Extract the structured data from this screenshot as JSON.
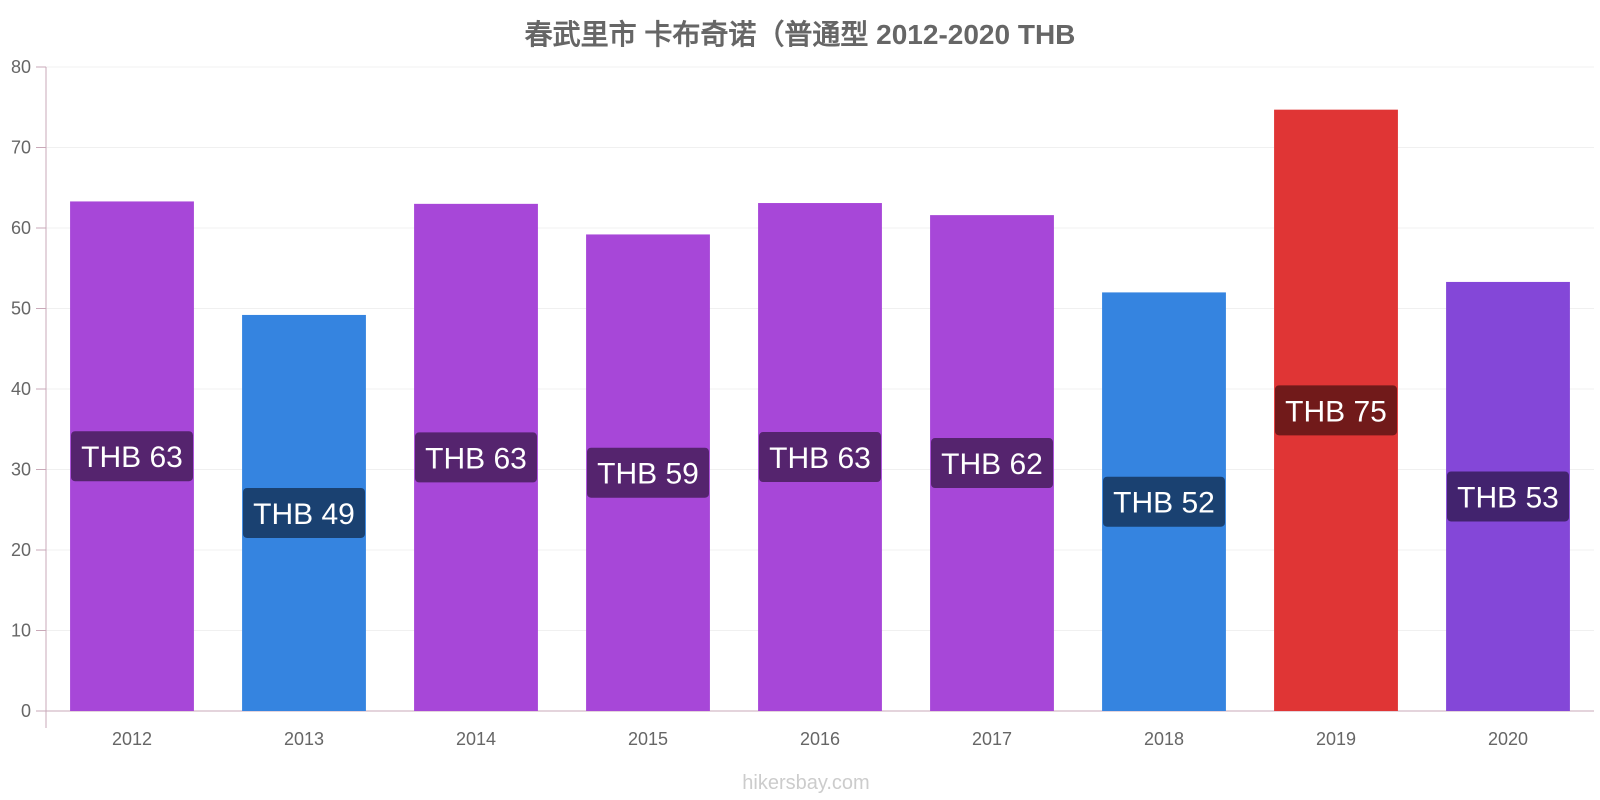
{
  "chart_data": {
    "type": "bar",
    "title": "春武里市 卡布奇诺（普通型 2012-2020 THB",
    "xlabel": "",
    "ylabel": "",
    "ylim": [
      0,
      80
    ],
    "yticks": [
      0,
      10,
      20,
      30,
      40,
      50,
      60,
      70,
      80
    ],
    "categories": [
      "2012",
      "2013",
      "2014",
      "2015",
      "2016",
      "2017",
      "2018",
      "2019",
      "2020"
    ],
    "values": [
      63.3,
      49.2,
      63.0,
      59.2,
      63.1,
      61.6,
      52.0,
      74.7,
      53.3
    ],
    "data_labels": [
      "THB 63",
      "THB 49",
      "THB 63",
      "THB 59",
      "THB 63",
      "THB 62",
      "THB 52",
      "THB 75",
      "THB 53"
    ],
    "bar_colors": [
      "#a747d8",
      "#3584e0",
      "#a747d8",
      "#a747d8",
      "#a747d8",
      "#a747d8",
      "#3584e0",
      "#e03535",
      "#8447d8"
    ],
    "label_colors": [
      "#55246e",
      "#1a4171",
      "#55246e",
      "#55246e",
      "#55246e",
      "#55246e",
      "#1a4171",
      "#711a1a",
      "#42236e"
    ],
    "grid": true,
    "legend": "none"
  },
  "footer": {
    "source": "hikersbay.com"
  }
}
